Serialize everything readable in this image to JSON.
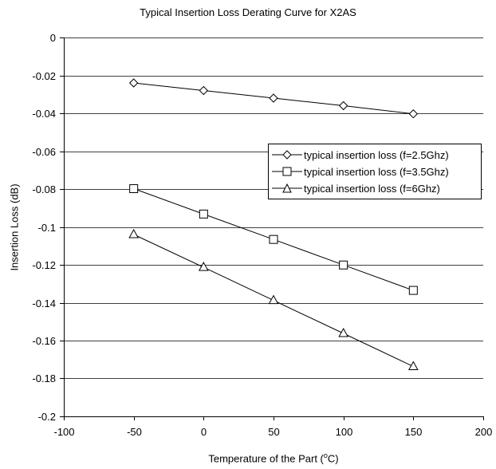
{
  "chart_data": {
    "type": "line",
    "title": "Typical Insertion Loss Derating Curve for X2AS",
    "xlabel_prefix": "Temperature of the Part (",
    "xlabel_sup": "o",
    "xlabel_suffix": "C)",
    "ylabel": "Insertion Loss (dB)",
    "xlim": [
      -100,
      200
    ],
    "ylim": [
      -0.2,
      0
    ],
    "xticks": [
      -100,
      -50,
      0,
      50,
      100,
      150,
      200
    ],
    "yticks": [
      0,
      -0.02,
      -0.04,
      -0.06,
      -0.08,
      -0.1,
      -0.12,
      -0.14,
      -0.16,
      -0.18,
      -0.2
    ],
    "grid": "horizontal",
    "legend_position": "middle-right",
    "x": [
      -50,
      0,
      50,
      100,
      150
    ],
    "series": [
      {
        "name": "typical insertion loss (f=2.5Ghz)",
        "marker": "diamond",
        "values": [
          -0.024,
          -0.028,
          -0.032,
          -0.036,
          -0.0403
        ]
      },
      {
        "name": "typical insertion loss (f=3.5Ghz)",
        "marker": "square",
        "values": [
          -0.0798,
          -0.0932,
          -0.1066,
          -0.1201,
          -0.1335
        ]
      },
      {
        "name": "typical insertion loss (f=6Ghz)",
        "marker": "triangle",
        "values": [
          -0.104,
          -0.1213,
          -0.1388,
          -0.1562,
          -0.1737
        ]
      }
    ],
    "colors": {
      "line": "#000000",
      "grid": "#000000",
      "background": "#ffffff"
    }
  }
}
